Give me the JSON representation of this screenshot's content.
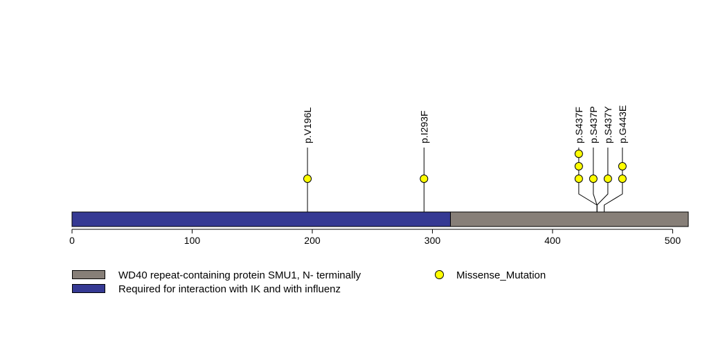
{
  "chart_data": {
    "type": "lollipop",
    "x_ticks": [
      0,
      100,
      200,
      300,
      400,
      500
    ],
    "xlim": [
      0,
      513
    ],
    "domains": [
      {
        "start": 0,
        "end": 315,
        "color": "#353993",
        "label": "Required for interaction with IK and with influenz"
      },
      {
        "start": 315,
        "end": 513,
        "color": "#877f78",
        "label": "WD40 repeat-containing protein SMU1, N- terminally"
      }
    ],
    "mutations": [
      {
        "label": "p.V196L",
        "position": 196,
        "count": 1
      },
      {
        "label": "p.I293F",
        "position": 293,
        "count": 1
      },
      {
        "label": "p.S437F",
        "position": 437,
        "count": 3
      },
      {
        "label": "p.S437P",
        "position": 437,
        "count": 1
      },
      {
        "label": "p.S437Y",
        "position": 437,
        "count": 1
      },
      {
        "label": "p.G443E",
        "position": 443,
        "count": 2
      }
    ],
    "legend": {
      "domains": [
        {
          "label": "WD40 repeat-containing protein SMU1, N- terminally",
          "color": "#877f78"
        },
        {
          "label": "Required for interaction with IK and with influenz",
          "color": "#353993"
        }
      ],
      "mutation_type": {
        "label": "Missense_Mutation",
        "color": "#ffff00"
      }
    }
  }
}
